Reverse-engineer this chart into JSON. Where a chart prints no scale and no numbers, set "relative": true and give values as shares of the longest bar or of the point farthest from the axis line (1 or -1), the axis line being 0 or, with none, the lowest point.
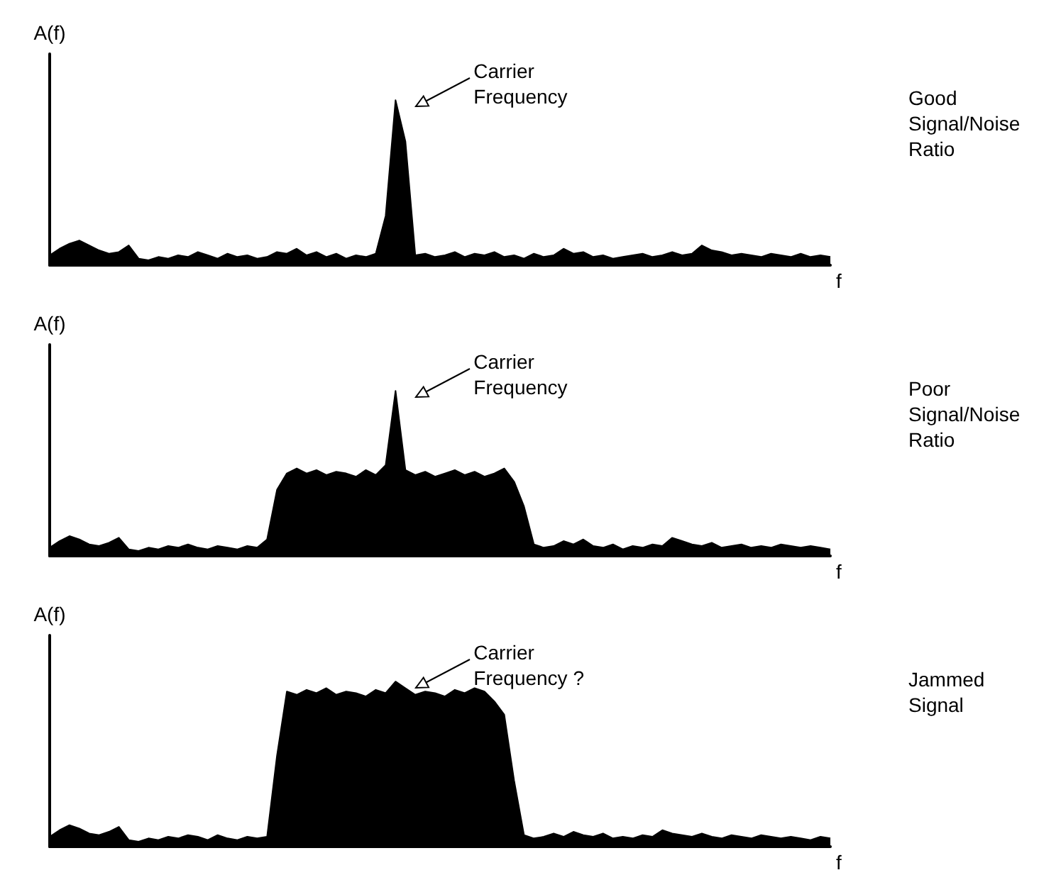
{
  "chart_data": [
    {
      "type": "area",
      "xlabel": "f",
      "ylabel": "A(f)",
      "relative": true,
      "color": "#000000",
      "annotations": [
        "Carrier Frequency",
        "Good Signal/Noise Ratio"
      ],
      "categories": [
        null,
        null,
        null,
        null,
        null,
        null,
        null,
        null,
        null,
        null,
        null,
        null,
        null,
        null,
        null,
        null,
        null,
        null,
        null,
        null,
        null,
        null,
        null,
        null,
        null,
        null,
        null,
        null,
        null,
        null,
        null,
        null,
        null,
        null,
        null,
        null,
        null,
        null,
        null,
        null,
        null,
        null,
        null,
        null,
        null,
        null,
        null,
        null,
        null,
        null,
        null,
        null,
        null,
        null,
        null,
        null,
        null,
        null,
        null,
        null,
        null,
        null,
        null,
        null,
        null,
        null,
        null,
        null,
        null,
        null,
        null,
        null,
        null,
        null,
        null,
        null,
        null,
        null,
        null,
        null
      ],
      "values": [
        0.06,
        0.1,
        0.13,
        0.15,
        0.12,
        0.09,
        0.07,
        0.08,
        0.12,
        0.04,
        0.03,
        0.05,
        0.04,
        0.06,
        0.05,
        0.08,
        0.06,
        0.04,
        0.07,
        0.05,
        0.06,
        0.04,
        0.05,
        0.08,
        0.07,
        0.1,
        0.06,
        0.08,
        0.05,
        0.07,
        0.04,
        0.06,
        0.05,
        0.07,
        0.3,
        1.0,
        0.75,
        0.06,
        0.07,
        0.05,
        0.06,
        0.08,
        0.05,
        0.07,
        0.06,
        0.08,
        0.05,
        0.06,
        0.04,
        0.07,
        0.05,
        0.06,
        0.1,
        0.07,
        0.08,
        0.05,
        0.06,
        0.04,
        0.05,
        0.06,
        0.07,
        0.05,
        0.06,
        0.08,
        0.06,
        0.07,
        0.12,
        0.09,
        0.08,
        0.06,
        0.07,
        0.06,
        0.05,
        0.07,
        0.06,
        0.05,
        0.07,
        0.05,
        0.06,
        0.05
      ]
    },
    {
      "type": "area",
      "xlabel": "f",
      "ylabel": "A(f)",
      "relative": true,
      "color": "#000000",
      "annotations": [
        "Carrier Frequency",
        "Poor Signal/Noise Ratio"
      ],
      "categories": [
        null,
        null,
        null,
        null,
        null,
        null,
        null,
        null,
        null,
        null,
        null,
        null,
        null,
        null,
        null,
        null,
        null,
        null,
        null,
        null,
        null,
        null,
        null,
        null,
        null,
        null,
        null,
        null,
        null,
        null,
        null,
        null,
        null,
        null,
        null,
        null,
        null,
        null,
        null,
        null,
        null,
        null,
        null,
        null,
        null,
        null,
        null,
        null,
        null,
        null,
        null,
        null,
        null,
        null,
        null,
        null,
        null,
        null,
        null,
        null,
        null,
        null,
        null,
        null,
        null,
        null,
        null,
        null,
        null,
        null,
        null,
        null,
        null,
        null,
        null,
        null,
        null,
        null,
        null,
        null
      ],
      "values": [
        0.05,
        0.09,
        0.12,
        0.1,
        0.07,
        0.06,
        0.08,
        0.11,
        0.04,
        0.03,
        0.05,
        0.04,
        0.06,
        0.05,
        0.07,
        0.05,
        0.04,
        0.06,
        0.05,
        0.04,
        0.06,
        0.05,
        0.1,
        0.4,
        0.5,
        0.53,
        0.5,
        0.52,
        0.49,
        0.51,
        0.5,
        0.48,
        0.52,
        0.49,
        0.55,
        1.0,
        0.52,
        0.49,
        0.51,
        0.48,
        0.5,
        0.52,
        0.49,
        0.51,
        0.48,
        0.5,
        0.53,
        0.45,
        0.3,
        0.07,
        0.05,
        0.06,
        0.09,
        0.07,
        0.1,
        0.06,
        0.05,
        0.07,
        0.04,
        0.06,
        0.05,
        0.07,
        0.06,
        0.11,
        0.09,
        0.07,
        0.06,
        0.08,
        0.05,
        0.06,
        0.07,
        0.05,
        0.06,
        0.05,
        0.07,
        0.06,
        0.05,
        0.06,
        0.05,
        0.04
      ]
    },
    {
      "type": "area",
      "xlabel": "f",
      "ylabel": "A(f)",
      "relative": true,
      "color": "#000000",
      "annotations": [
        "Carrier Frequency ?",
        "Jammed Signal"
      ],
      "categories": [
        null,
        null,
        null,
        null,
        null,
        null,
        null,
        null,
        null,
        null,
        null,
        null,
        null,
        null,
        null,
        null,
        null,
        null,
        null,
        null,
        null,
        null,
        null,
        null,
        null,
        null,
        null,
        null,
        null,
        null,
        null,
        null,
        null,
        null,
        null,
        null,
        null,
        null,
        null,
        null,
        null,
        null,
        null,
        null,
        null,
        null,
        null,
        null,
        null,
        null,
        null,
        null,
        null,
        null,
        null,
        null,
        null,
        null,
        null,
        null,
        null,
        null,
        null,
        null,
        null,
        null,
        null,
        null,
        null,
        null,
        null,
        null,
        null,
        null,
        null,
        null,
        null,
        null,
        null,
        null
      ],
      "values": [
        0.06,
        0.1,
        0.13,
        0.11,
        0.08,
        0.07,
        0.09,
        0.12,
        0.04,
        0.03,
        0.05,
        0.04,
        0.06,
        0.05,
        0.07,
        0.06,
        0.04,
        0.07,
        0.05,
        0.04,
        0.06,
        0.05,
        0.06,
        0.55,
        0.94,
        0.92,
        0.95,
        0.93,
        0.96,
        0.92,
        0.94,
        0.93,
        0.91,
        0.95,
        0.93,
        1.0,
        0.96,
        0.92,
        0.94,
        0.93,
        0.91,
        0.95,
        0.93,
        0.96,
        0.94,
        0.88,
        0.8,
        0.4,
        0.07,
        0.05,
        0.06,
        0.08,
        0.06,
        0.09,
        0.07,
        0.06,
        0.08,
        0.05,
        0.06,
        0.05,
        0.07,
        0.06,
        0.1,
        0.08,
        0.07,
        0.06,
        0.08,
        0.06,
        0.05,
        0.07,
        0.06,
        0.05,
        0.07,
        0.06,
        0.05,
        0.06,
        0.05,
        0.04,
        0.06,
        0.05
      ]
    }
  ]
}
